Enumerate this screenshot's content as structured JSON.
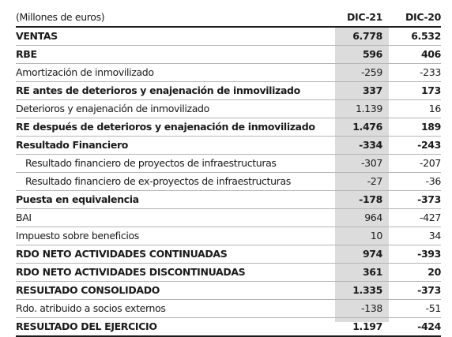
{
  "header": {
    "units": "(Millones de euros)",
    "col_2021": "DIC-21",
    "col_2020": "DIC-20"
  },
  "rows": [
    {
      "label": "VENTAS",
      "dic21": "6.778",
      "dic20": "6.532",
      "bold": true
    },
    {
      "label": "RBE",
      "dic21": "596",
      "dic20": "406",
      "bold": true
    },
    {
      "label": "Amortización de inmovilizado",
      "dic21": "-259",
      "dic20": "-233",
      "bold": false
    },
    {
      "label": "RE antes de deterioros y enajenación de inmovilizado",
      "dic21": "337",
      "dic20": "173",
      "bold": true
    },
    {
      "label": "Deterioros y enajenación de inmovilizado",
      "dic21": "1.139",
      "dic20": "16",
      "bold": false
    },
    {
      "label": "RE después de deterioros y enajenación de inmovilizado",
      "dic21": "1.476",
      "dic20": "189",
      "bold": true
    },
    {
      "label": "Resultado Financiero",
      "dic21": "-334",
      "dic20": "-243",
      "bold": true
    },
    {
      "label": "Resultado financiero de proyectos de infraestructuras",
      "dic21": "-307",
      "dic20": "-207",
      "bold": false,
      "indent": true
    },
    {
      "label": "Resultado financiero de ex-proyectos de infraestructuras",
      "dic21": "-27",
      "dic20": "-36",
      "bold": false,
      "indent": true
    },
    {
      "label": "Puesta en equivalencia",
      "dic21": "-178",
      "dic20": "-373",
      "bold": true
    },
    {
      "label": "BAI",
      "dic21": "964",
      "dic20": "-427",
      "bold": false
    },
    {
      "label": "Impuesto sobre beneficios",
      "dic21": "10",
      "dic20": "34",
      "bold": false
    },
    {
      "label": "RDO NETO ACTIVIDADES CONTINUADAS",
      "dic21": "974",
      "dic20": "-393",
      "bold": true
    },
    {
      "label": "RDO NETO ACTIVIDADES DISCONTINUADAS",
      "dic21": "361",
      "dic20": "20",
      "bold": true
    },
    {
      "label": "RESULTADO CONSOLIDADO",
      "dic21": "1.335",
      "dic20": "-373",
      "bold": true
    },
    {
      "label": "Rdo. atribuido a socios externos",
      "dic21": "-138",
      "dic20": "-51",
      "bold": false
    },
    {
      "label": "RESULTADO DEL EJERCICIO",
      "dic21": "1.197",
      "dic20": "-424",
      "bold": true
    }
  ],
  "colors": {
    "highlight_column": "#dcdcdc",
    "text": "#1a1a1a",
    "rule": "#b5b5b5"
  }
}
